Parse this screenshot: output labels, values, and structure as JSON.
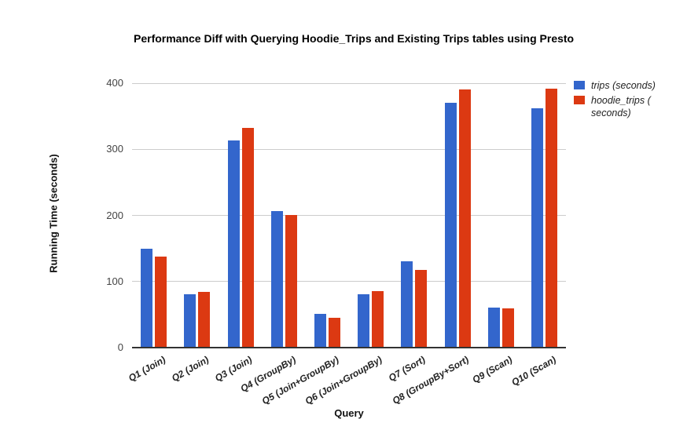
{
  "chart_data": {
    "type": "bar",
    "title": "Performance Diff with Querying Hoodie_Trips and Existing Trips tables using Presto",
    "xlabel": "Query",
    "ylabel": "Running Time (seconds)",
    "ylim": [
      0,
      400
    ],
    "yticks": [
      0,
      100,
      200,
      300,
      400
    ],
    "grid": true,
    "legend_position": "right",
    "categories": [
      "Q1 (Join)",
      "Q2 (Join)",
      "Q3 (Join)",
      "Q4 (GroupBy)",
      "Q5 (Join+GroupBy)",
      "Q6 (Join+GroupBy)",
      "Q7 (Sort)",
      "Q8 (GroupBy+Sort)",
      "Q9 (Scan)",
      "Q10 (Scan)"
    ],
    "series": [
      {
        "name": "trips (seconds)",
        "color": "#3366CC",
        "values": [
          150,
          81,
          313,
          207,
          51,
          81,
          131,
          370,
          60,
          362
        ]
      },
      {
        "name": "hoodie_trips ( seconds)",
        "color": "#DC3912",
        "values": [
          138,
          84,
          332,
          201,
          45,
          85,
          117,
          390,
          59,
          392
        ]
      }
    ]
  }
}
